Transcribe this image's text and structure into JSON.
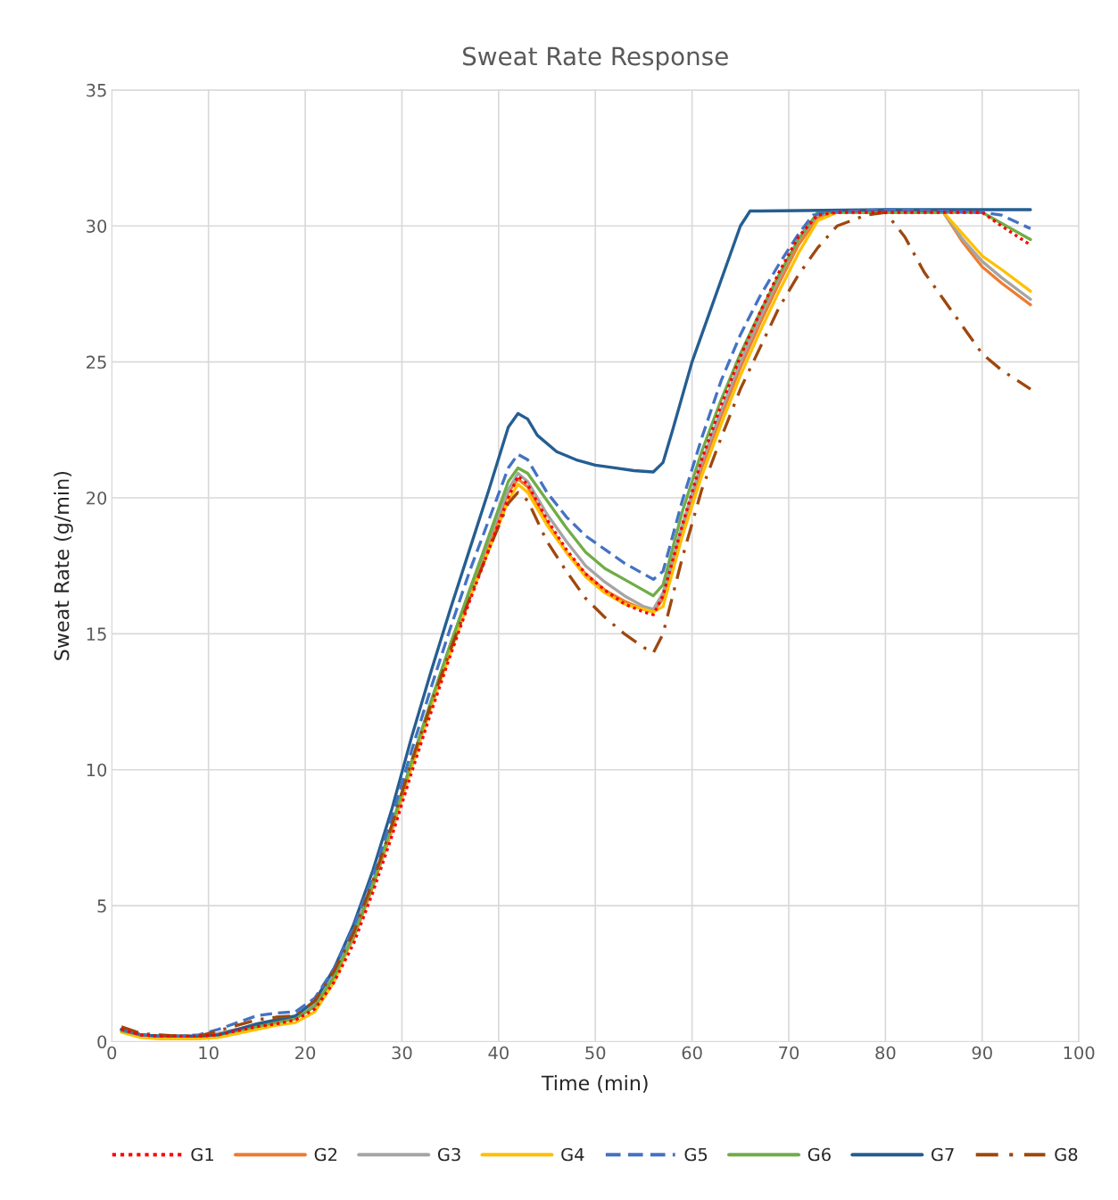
{
  "chart_data": {
    "type": "line",
    "title": "Sweat Rate Response",
    "xlabel": "Time (min)",
    "ylabel": "Sweat Rate (g/min)",
    "xlim": [
      0,
      100
    ],
    "xticks": [
      0,
      10,
      20,
      30,
      40,
      50,
      60,
      70,
      80,
      90,
      100
    ],
    "ylim": [
      0,
      35
    ],
    "yticks": [
      0,
      5,
      10,
      15,
      20,
      25,
      30,
      35
    ],
    "grid": true,
    "legend": "bottom",
    "marker": "none",
    "series": [
      {
        "name": "G1",
        "color": "#ff0000",
        "line_style": "dotted",
        "x": [
          1,
          3,
          5,
          7,
          9,
          11,
          13,
          15,
          17,
          19,
          21,
          23,
          25,
          27,
          29,
          31,
          33,
          35,
          37,
          39,
          41,
          42,
          43,
          45,
          47,
          49,
          51,
          53,
          55,
          56,
          57,
          59,
          61,
          63,
          65,
          67,
          69,
          71,
          73,
          75,
          80,
          86,
          90,
          92,
          95
        ],
        "values": [
          0.45,
          0.25,
          0.2,
          0.2,
          0.2,
          0.25,
          0.4,
          0.55,
          0.65,
          0.8,
          1.2,
          2.2,
          3.6,
          5.5,
          7.6,
          9.9,
          12.1,
          14.2,
          16.2,
          18.1,
          20.0,
          20.8,
          20.5,
          19.2,
          18.1,
          17.2,
          16.6,
          16.1,
          15.8,
          15.7,
          16.4,
          19.0,
          21.4,
          23.4,
          25.2,
          26.8,
          28.3,
          29.6,
          30.4,
          30.5,
          30.5,
          30.5,
          30.5,
          30.0,
          29.3
        ]
      },
      {
        "name": "G2",
        "color": "#ed7d31",
        "line_style": "solid",
        "x": [
          1,
          3,
          5,
          7,
          9,
          11,
          13,
          15,
          17,
          19,
          21,
          23,
          25,
          27,
          29,
          31,
          33,
          35,
          37,
          39,
          41,
          42,
          43,
          45,
          47,
          49,
          51,
          53,
          55,
          56,
          57,
          59,
          61,
          63,
          65,
          67,
          69,
          71,
          73,
          75,
          80,
          86,
          88,
          90,
          92,
          95
        ],
        "values": [
          0.45,
          0.25,
          0.2,
          0.2,
          0.2,
          0.3,
          0.45,
          0.6,
          0.75,
          0.85,
          1.3,
          2.4,
          3.8,
          5.7,
          7.8,
          10.1,
          12.3,
          14.4,
          16.4,
          18.3,
          20.2,
          20.7,
          20.4,
          19.1,
          18.0,
          17.2,
          16.6,
          16.2,
          15.9,
          15.8,
          16.3,
          18.8,
          21.1,
          23.0,
          24.8,
          26.4,
          27.9,
          29.3,
          30.3,
          30.5,
          30.5,
          30.5,
          29.4,
          28.5,
          27.9,
          27.1
        ]
      },
      {
        "name": "G3",
        "color": "#a5a5a5",
        "line_style": "solid",
        "x": [
          1,
          3,
          5,
          7,
          9,
          11,
          13,
          15,
          17,
          19,
          21,
          23,
          25,
          27,
          29,
          31,
          33,
          35,
          37,
          39,
          41,
          42,
          43,
          45,
          47,
          49,
          51,
          53,
          55,
          56,
          57,
          59,
          61,
          63,
          65,
          67,
          69,
          71,
          73,
          74,
          80,
          86,
          88,
          90,
          92,
          95
        ],
        "values": [
          0.45,
          0.25,
          0.2,
          0.2,
          0.2,
          0.3,
          0.45,
          0.65,
          0.8,
          0.9,
          1.4,
          2.5,
          4.0,
          5.9,
          8.0,
          10.3,
          12.5,
          14.6,
          16.6,
          18.5,
          20.3,
          20.9,
          20.6,
          19.4,
          18.4,
          17.5,
          16.9,
          16.4,
          16.0,
          15.9,
          16.5,
          19.0,
          21.3,
          23.2,
          25.0,
          26.6,
          28.1,
          29.5,
          30.4,
          30.5,
          30.5,
          30.5,
          29.5,
          28.7,
          28.1,
          27.3
        ]
      },
      {
        "name": "G4",
        "color": "#ffc000",
        "line_style": "solid",
        "x": [
          1,
          3,
          5,
          7,
          9,
          11,
          13,
          15,
          17,
          19,
          21,
          23,
          25,
          27,
          29,
          31,
          33,
          35,
          37,
          39,
          41,
          42,
          43,
          45,
          47,
          49,
          51,
          53,
          55,
          56,
          57,
          59,
          61,
          63,
          65,
          67,
          69,
          71,
          73,
          75,
          80,
          86,
          88,
          90,
          92,
          95
        ],
        "values": [
          0.35,
          0.15,
          0.1,
          0.1,
          0.1,
          0.15,
          0.3,
          0.45,
          0.6,
          0.7,
          1.1,
          2.2,
          3.9,
          5.8,
          7.9,
          10.1,
          12.3,
          14.3,
          16.3,
          18.1,
          19.9,
          20.5,
          20.2,
          19.0,
          18.0,
          17.1,
          16.5,
          16.1,
          15.9,
          15.8,
          16.0,
          18.6,
          20.8,
          22.7,
          24.5,
          26.1,
          27.6,
          29.0,
          30.2,
          30.5,
          30.5,
          30.5,
          29.7,
          28.9,
          28.4,
          27.6
        ]
      },
      {
        "name": "G5",
        "color": "#4472c4",
        "line_style": "dashed",
        "x": [
          1,
          3,
          5,
          7,
          9,
          11,
          13,
          15,
          17,
          19,
          21,
          23,
          25,
          27,
          29,
          31,
          33,
          35,
          37,
          39,
          41,
          42,
          43,
          45,
          47,
          49,
          51,
          53,
          55,
          56,
          57,
          59,
          61,
          63,
          65,
          67,
          69,
          71,
          72.5,
          74,
          80,
          90,
          92,
          95
        ],
        "values": [
          0.45,
          0.25,
          0.2,
          0.2,
          0.25,
          0.45,
          0.7,
          0.95,
          1.05,
          1.1,
          1.6,
          2.7,
          4.2,
          6.1,
          8.3,
          10.7,
          13.0,
          15.2,
          17.3,
          19.2,
          21.1,
          21.6,
          21.4,
          20.2,
          19.3,
          18.6,
          18.1,
          17.6,
          17.2,
          17.0,
          17.3,
          19.9,
          22.2,
          24.3,
          26.0,
          27.4,
          28.6,
          29.7,
          30.4,
          30.5,
          30.6,
          30.5,
          30.4,
          29.9
        ]
      },
      {
        "name": "G6",
        "color": "#70ad47",
        "line_style": "solid",
        "x": [
          1,
          3,
          5,
          7,
          9,
          11,
          13,
          15,
          17,
          19,
          21,
          23,
          25,
          27,
          29,
          31,
          33,
          35,
          37,
          39,
          41,
          42,
          43,
          45,
          47,
          49,
          51,
          53,
          55,
          56,
          57,
          59,
          61,
          63,
          65,
          67,
          69,
          71,
          73,
          80,
          90,
          92,
          95
        ],
        "values": [
          0.4,
          0.25,
          0.2,
          0.2,
          0.2,
          0.25,
          0.4,
          0.55,
          0.7,
          0.85,
          1.3,
          2.4,
          3.9,
          5.8,
          8.0,
          10.3,
          12.5,
          14.6,
          16.6,
          18.6,
          20.6,
          21.1,
          20.9,
          19.9,
          18.9,
          18.0,
          17.4,
          17.0,
          16.6,
          16.4,
          16.8,
          19.5,
          21.7,
          23.6,
          25.3,
          26.8,
          28.2,
          29.5,
          30.5,
          30.5,
          30.5,
          30.1,
          29.5
        ]
      },
      {
        "name": "G7",
        "color": "#255e91",
        "line_style": "solid",
        "x": [
          1,
          3,
          5,
          7,
          9,
          11,
          13,
          15,
          17,
          19,
          21,
          23,
          25,
          27,
          29,
          31,
          33,
          35,
          37,
          39,
          41,
          42,
          43,
          44,
          46,
          48,
          50,
          52,
          54,
          56,
          57,
          58,
          60,
          62,
          64,
          65,
          66,
          67,
          80,
          95
        ],
        "values": [
          0.45,
          0.25,
          0.2,
          0.2,
          0.2,
          0.25,
          0.45,
          0.65,
          0.8,
          0.95,
          1.5,
          2.7,
          4.3,
          6.3,
          8.6,
          11.2,
          13.6,
          15.9,
          18.1,
          20.3,
          22.6,
          23.1,
          22.9,
          22.3,
          21.7,
          21.4,
          21.2,
          21.1,
          21.0,
          20.95,
          21.3,
          22.5,
          25.0,
          27.0,
          29.0,
          30.0,
          30.55,
          30.55,
          30.6,
          30.6
        ]
      },
      {
        "name": "G8",
        "color": "#9e480e",
        "line_style": "dashdot",
        "x": [
          1,
          3,
          5,
          7,
          9,
          11,
          13,
          15,
          17,
          19,
          21,
          23,
          25,
          27,
          29,
          31,
          33,
          35,
          37,
          39,
          41,
          42,
          43,
          45,
          47,
          49,
          51,
          53,
          55,
          56,
          57,
          59,
          61,
          63,
          65,
          67,
          69,
          71,
          73,
          75,
          78,
          80,
          82,
          84,
          86,
          88,
          90,
          92,
          95
        ],
        "values": [
          0.55,
          0.3,
          0.25,
          0.2,
          0.2,
          0.4,
          0.6,
          0.8,
          0.9,
          0.95,
          1.5,
          2.6,
          4.0,
          5.9,
          8.0,
          10.3,
          12.4,
          14.4,
          16.3,
          18.1,
          19.8,
          20.2,
          19.9,
          18.4,
          17.3,
          16.3,
          15.6,
          15.0,
          14.5,
          14.3,
          15.0,
          17.8,
          20.3,
          22.2,
          24.0,
          25.5,
          27.0,
          28.2,
          29.2,
          30.0,
          30.4,
          30.5,
          29.6,
          28.3,
          27.3,
          26.3,
          25.3,
          24.7,
          24.0
        ]
      }
    ]
  }
}
